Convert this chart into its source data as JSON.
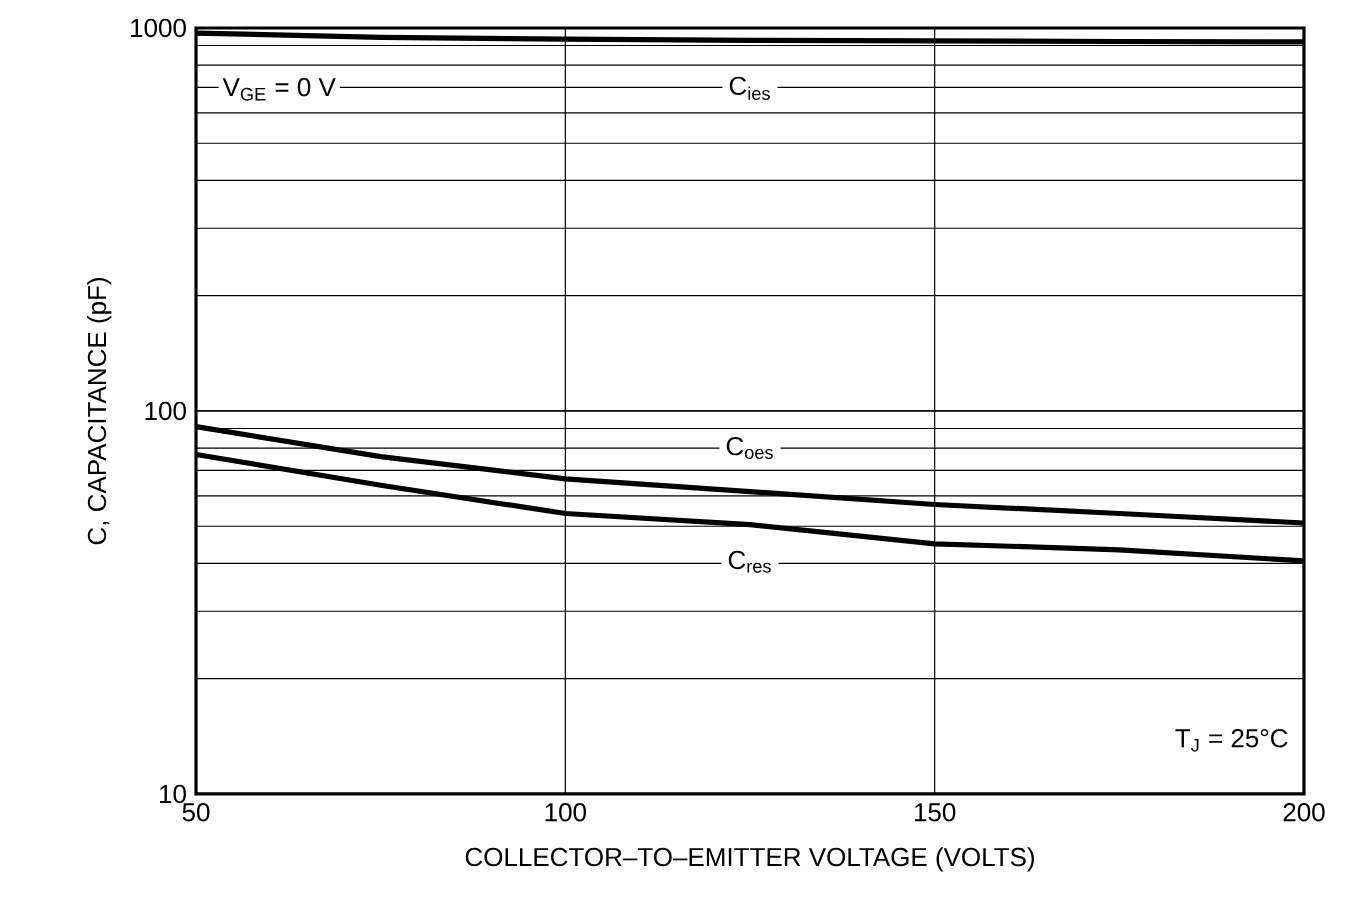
{
  "chart_data": {
    "type": "line",
    "xlabel": "COLLECTOR–TO–EMITTER VOLTAGE (VOLTS)",
    "ylabel": "C, CAPACITANCE (pF)",
    "log": "y",
    "grid": true,
    "marker": "none",
    "line_style": "solid",
    "xlim": [
      50,
      200
    ],
    "xticks": [
      50,
      100,
      150,
      200
    ],
    "ylim": [
      10,
      1000
    ],
    "yticks": [
      10,
      100,
      1000
    ],
    "x": [
      50,
      75,
      100,
      125,
      150,
      175,
      200
    ],
    "series": [
      {
        "name": "C$_{ies}$",
        "color": "#000000",
        "values": [
          970,
          945,
          935,
          928,
          925,
          922,
          920
        ]
      },
      {
        "name": "C$_{oes}$",
        "color": "#000000",
        "values": [
          91,
          76,
          66.5,
          61.6,
          57,
          54,
          51
        ]
      },
      {
        "name": "C$_{res}$",
        "color": "#000000",
        "values": [
          77,
          64,
          54,
          50.5,
          45,
          43.4,
          40.6
        ]
      }
    ],
    "annotations": [
      "V$_{GE}$ = 0 V",
      "T$_{J}$ = 25°C"
    ]
  }
}
